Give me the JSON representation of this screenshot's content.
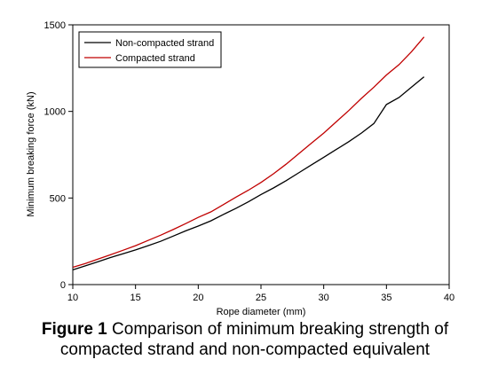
{
  "chart_data": {
    "type": "line",
    "xlabel": "Rope diameter (mm)",
    "ylabel": "Minimum breaking force (kN)",
    "xlim": [
      10,
      40
    ],
    "ylim": [
      0,
      1500
    ],
    "x_ticks": [
      10,
      15,
      20,
      25,
      30,
      35,
      40
    ],
    "y_ticks": [
      0,
      500,
      1000,
      1500
    ],
    "legend_position": "top-left",
    "grid": false,
    "series": [
      {
        "name": "Non-compacted strand",
        "color": "#000000",
        "points": [
          [
            10,
            85
          ],
          [
            11,
            108
          ],
          [
            12,
            132
          ],
          [
            13,
            156
          ],
          [
            14,
            178
          ],
          [
            15,
            200
          ],
          [
            16,
            225
          ],
          [
            17,
            250
          ],
          [
            18,
            280
          ],
          [
            19,
            310
          ],
          [
            20,
            338
          ],
          [
            21,
            368
          ],
          [
            22,
            405
          ],
          [
            23,
            440
          ],
          [
            24,
            478
          ],
          [
            25,
            520
          ],
          [
            26,
            558
          ],
          [
            27,
            600
          ],
          [
            28,
            645
          ],
          [
            29,
            690
          ],
          [
            30,
            735
          ],
          [
            31,
            780
          ],
          [
            32,
            825
          ],
          [
            33,
            875
          ],
          [
            34,
            930
          ],
          [
            35,
            1040
          ],
          [
            36,
            1080
          ],
          [
            37,
            1140
          ],
          [
            38,
            1200
          ]
        ]
      },
      {
        "name": "Compacted strand",
        "color": "#c00000",
        "points": [
          [
            10,
            100
          ],
          [
            11,
            122
          ],
          [
            12,
            147
          ],
          [
            13,
            172
          ],
          [
            14,
            198
          ],
          [
            15,
            225
          ],
          [
            16,
            255
          ],
          [
            17,
            285
          ],
          [
            18,
            318
          ],
          [
            19,
            352
          ],
          [
            20,
            388
          ],
          [
            21,
            420
          ],
          [
            22,
            462
          ],
          [
            23,
            505
          ],
          [
            24,
            545
          ],
          [
            25,
            590
          ],
          [
            26,
            640
          ],
          [
            27,
            695
          ],
          [
            28,
            755
          ],
          [
            29,
            815
          ],
          [
            30,
            875
          ],
          [
            31,
            940
          ],
          [
            32,
            1005
          ],
          [
            33,
            1075
          ],
          [
            34,
            1140
          ],
          [
            35,
            1210
          ],
          [
            36,
            1270
          ],
          [
            37,
            1345
          ],
          [
            38,
            1430
          ]
        ]
      }
    ]
  },
  "caption": {
    "label": "Figure 1",
    "text": " Comparison of minimum breaking strength of compacted strand and non-compacted equivalent"
  }
}
